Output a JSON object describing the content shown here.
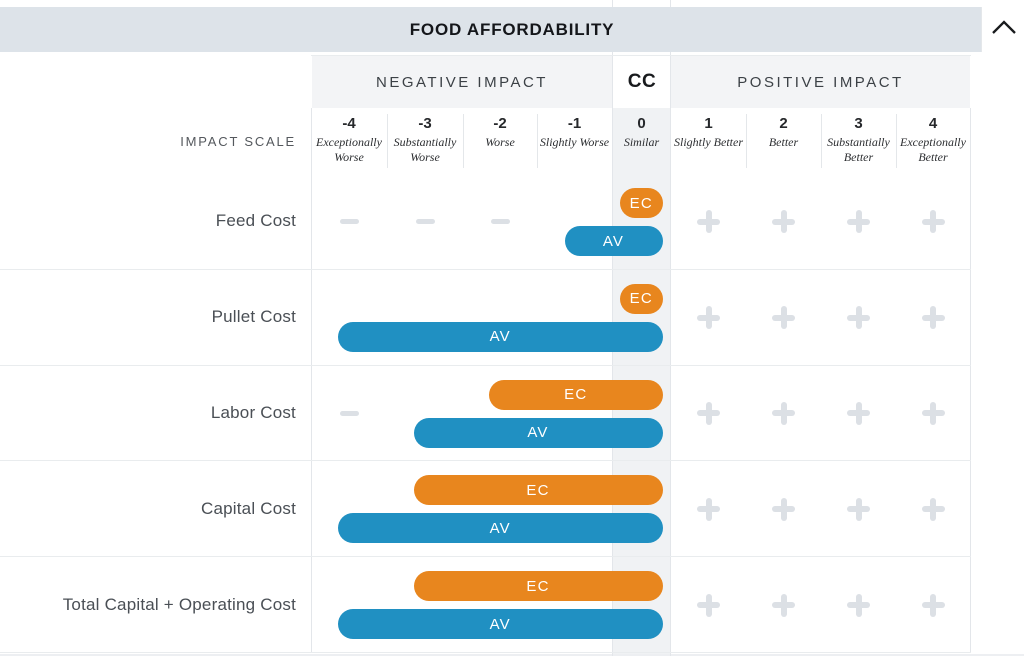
{
  "title_bar": {
    "title": "FOOD AFFORDABILITY"
  },
  "header": {
    "negative": "NEGATIVE IMPACT",
    "cc": "CC",
    "positive": "POSITIVE IMPACT"
  },
  "impact_scale": {
    "row_label": "IMPACT SCALE",
    "levels": [
      {
        "value": "-4",
        "label": "Exceptionally Worse"
      },
      {
        "value": "-3",
        "label": "Substantially Worse"
      },
      {
        "value": "-2",
        "label": "Worse"
      },
      {
        "value": "-1",
        "label": "Slightly Worse"
      },
      {
        "value": "0",
        "label": "Similar"
      },
      {
        "value": "1",
        "label": "Slightly Better"
      },
      {
        "value": "2",
        "label": "Better"
      },
      {
        "value": "3",
        "label": "Substantially Better"
      },
      {
        "value": "4",
        "label": "Exceptionally Better"
      }
    ]
  },
  "chart_data": {
    "type": "bar",
    "orientation": "horizontal",
    "title": "FOOD AFFORDABILITY",
    "categories": [
      "Feed Cost",
      "Pullet Cost",
      "Labor Cost",
      "Capital Cost",
      "Total Capital + Operating Cost"
    ],
    "series": [
      {
        "name": "EC",
        "color": "#E8861E",
        "values": [
          0,
          0,
          -2,
          -3,
          -3
        ]
      },
      {
        "name": "AV",
        "color": "#2090C2",
        "values": [
          -1,
          -4,
          -3,
          -4,
          -4
        ]
      }
    ],
    "x_axis": {
      "range": [
        -4,
        4
      ],
      "negative_header": "NEGATIVE IMPACT",
      "positive_header": "POSITIVE IMPACT",
      "center_header": "CC",
      "zero_label": "Similar"
    },
    "bars_span_from_value_to_zero": true,
    "legend_position": "on-bar"
  },
  "icons": {
    "collapse": "chevron-up"
  },
  "colors": {
    "ec": "#E8861E",
    "av": "#2090C2",
    "title_bar_bg": "#DDE3E9",
    "header_cell_bg": "#F3F4F6",
    "cc_column_bg": "#F0F2F4",
    "marker": "#DCE0E5",
    "grid_line": "#E3E6EA"
  }
}
